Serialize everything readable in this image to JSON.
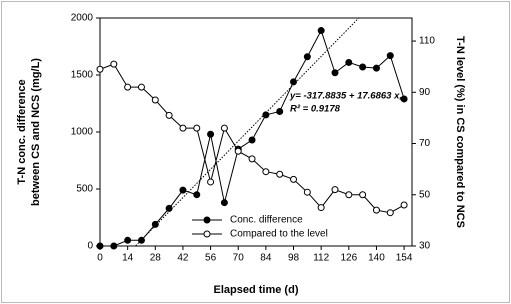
{
  "chart_data": {
    "type": "line",
    "xlabel": "Elapsed time (d)",
    "ylabel": [
      "T-N conc. difference",
      "between CS and NCS (mg/L)"
    ],
    "y2label": "T-N level (%) in CS compared to NCS",
    "x": [
      0,
      7,
      14,
      21,
      28,
      35,
      42,
      49,
      56,
      63,
      70,
      77,
      84,
      91,
      98,
      105,
      112,
      119,
      126,
      133,
      140,
      147,
      154
    ],
    "series": [
      {
        "name": "Conc. difference",
        "color": "#000000",
        "marker": "filled",
        "axis": "y",
        "values": [
          0,
          0,
          50,
          50,
          190,
          330,
          490,
          450,
          980,
          380,
          850,
          930,
          1150,
          1180,
          1440,
          1660,
          1890,
          1520,
          1610,
          1570,
          1560,
          1670,
          1290
        ]
      },
      {
        "name": "Compared to the level",
        "color": "#000000",
        "marker": "open",
        "axis": "y2",
        "values": [
          99,
          101,
          92,
          92,
          87,
          81,
          76,
          76,
          55,
          76,
          67,
          64,
          59,
          58,
          56,
          51,
          45,
          52,
          50,
          50,
          44,
          43,
          46
        ]
      }
    ],
    "regression": {
      "intercept": -317.8835,
      "slope": 17.6863,
      "text": "y= -317.8835 + 17.6863 x,",
      "r2_text": "R² = 0.9178"
    },
    "xlim": [
      0,
      158
    ],
    "xticks": [
      0,
      14,
      28,
      42,
      56,
      70,
      84,
      98,
      112,
      126,
      140,
      154
    ],
    "ylim": [
      0,
      2000
    ],
    "yticks": [
      0,
      500,
      1000,
      1500,
      2000
    ],
    "y2lim": [
      30,
      119
    ],
    "y2ticks": [
      30,
      50,
      70,
      90,
      110
    ],
    "grid": false
  }
}
